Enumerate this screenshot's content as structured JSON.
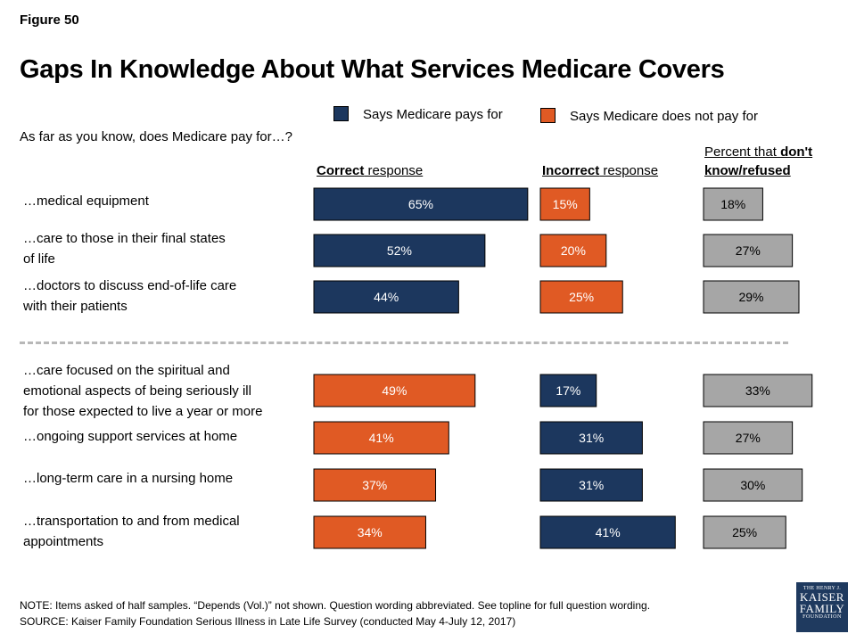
{
  "figure_label": "Figure 50",
  "title": "Gaps In Knowledge About What Services Medicare Covers",
  "question": "As far as you know, does Medicare pay for…?",
  "legend": [
    {
      "label": "Says Medicare pays for",
      "color": "#1c375e"
    },
    {
      "label": "Says Medicare does not pay for",
      "color": "#e05a24"
    }
  ],
  "column_headers": {
    "correct": {
      "bold": "Correct",
      "rest": " response"
    },
    "incorrect": {
      "bold": "Incorrect",
      "rest": " response"
    },
    "dontknow": {
      "line1_plain": "Percent that ",
      "line1_bold": "don't",
      "line2_bold": "know/refused"
    }
  },
  "chart_data": {
    "type": "bar",
    "orientation": "horizontal",
    "unit": "%",
    "categories": [
      "…medical equipment",
      "…care to those in their final states of life",
      "…doctors to discuss end-of-life care with their patients",
      "…care focused on the spiritual and emotional aspects of being seriously ill for those expected to live a year or more",
      "…ongoing support services at home",
      "…long-term care in a nursing home",
      "…transportation to and from medical appointments"
    ],
    "series": [
      {
        "name": "Correct response",
        "values": [
          65,
          52,
          44,
          49,
          41,
          37,
          34
        ],
        "colors": [
          "#1c375e",
          "#1c375e",
          "#1c375e",
          "#e05a24",
          "#e05a24",
          "#e05a24",
          "#e05a24"
        ]
      },
      {
        "name": "Incorrect response",
        "values": [
          15,
          20,
          25,
          17,
          31,
          31,
          41
        ],
        "colors": [
          "#e05a24",
          "#e05a24",
          "#e05a24",
          "#1c375e",
          "#1c375e",
          "#1c375e",
          "#1c375e"
        ]
      },
      {
        "name": "Percent that don't know/refused",
        "values": [
          18,
          27,
          29,
          33,
          27,
          30,
          25
        ],
        "colors": [
          "#a6a6a6",
          "#a6a6a6",
          "#a6a6a6",
          "#a6a6a6",
          "#a6a6a6",
          "#a6a6a6",
          "#a6a6a6"
        ]
      }
    ],
    "legend_placement": "top"
  },
  "row_labels": [
    [
      "…medical equipment"
    ],
    [
      "…care to those in their final states",
      "of life"
    ],
    [
      "…doctors to discuss end-of-life care",
      "with their patients"
    ],
    [
      "…care focused on the spiritual and",
      "emotional aspects of being seriously ill",
      "for those expected to live a year or more"
    ],
    [
      "…ongoing support services at home"
    ],
    [
      "…long-term care in a nursing home"
    ],
    [
      "…transportation to and from medical",
      "appointments"
    ]
  ],
  "note": "NOTE: Items asked of half samples. “Depends (Vol.)” not shown. Question wording abbreviated. See topline for full question wording.",
  "source": "SOURCE: Kaiser Family Foundation Serious Illness in Late Life Survey (conducted May 4-July 12, 2017)",
  "logo": {
    "line1": "THE HENRY J.",
    "line2": "KAISER",
    "line3": "FAMILY",
    "line4": "FOUNDATION"
  }
}
